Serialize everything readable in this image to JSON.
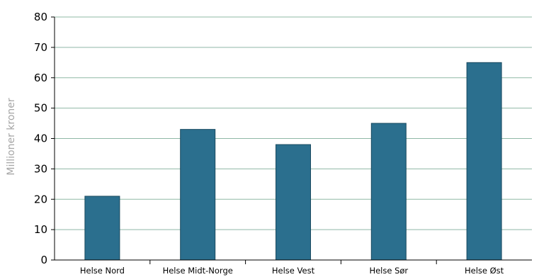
{
  "chart_data": {
    "type": "bar",
    "title": "",
    "xlabel": "",
    "ylabel": "Millioner kroner",
    "categories": [
      "Helse Nord",
      "Helse Midt-Norge",
      "Helse Vest",
      "Helse Sør",
      "Helse Øst"
    ],
    "values": [
      21,
      43,
      38,
      45,
      65
    ],
    "ylim": [
      0,
      80
    ],
    "yticks": [
      0,
      10,
      20,
      30,
      40,
      50,
      60,
      70,
      80
    ],
    "grid": true,
    "legend": "none",
    "colors": {
      "bar": "#2b6f8e",
      "bar_edge": "#1a4a60",
      "grid": "#8fb8a6",
      "axis": "#000000"
    }
  }
}
